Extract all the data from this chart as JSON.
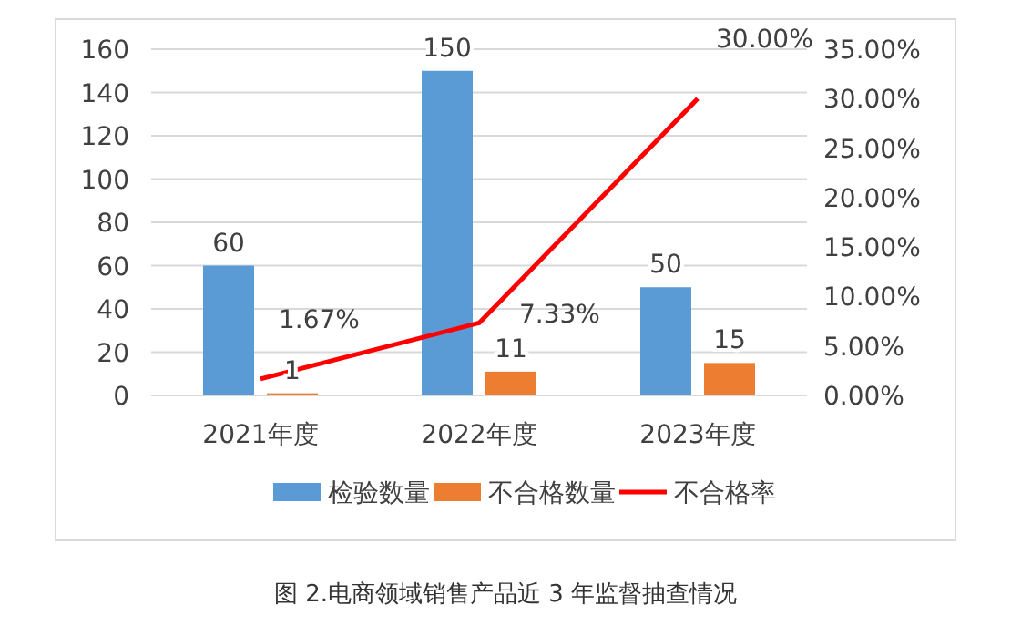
{
  "chart_data": {
    "type": "bar",
    "categories": [
      "2021年度",
      "2022年度",
      "2023年度"
    ],
    "series": [
      {
        "name": "检验数量",
        "color": "#5b9bd5",
        "values": [
          60,
          150,
          50
        ],
        "value_labels": [
          "60",
          "150",
          "50"
        ]
      },
      {
        "name": "不合格数量",
        "color": "#ed7d31",
        "values": [
          1,
          11,
          15
        ],
        "value_labels": [
          "1",
          "11",
          "15"
        ]
      },
      {
        "name": "不合格率",
        "type": "line",
        "axis": "y2",
        "color": "#ff0000",
        "values": [
          1.67,
          7.33,
          30.0
        ],
        "value_labels": [
          "1.67%",
          "7.33%",
          "30.00%"
        ]
      }
    ],
    "ylim": [
      0,
      160
    ],
    "yticks": [
      0,
      20,
      40,
      60,
      80,
      100,
      120,
      140,
      160
    ],
    "y2lim": [
      0,
      35
    ],
    "y2ticks": [
      {
        "value": 0,
        "label": "0.00%"
      },
      {
        "value": 5,
        "label": "5.00%"
      },
      {
        "value": 10,
        "label": "10.00%"
      },
      {
        "value": 15,
        "label": "15.00%"
      },
      {
        "value": 20,
        "label": "20.00%"
      },
      {
        "value": 25,
        "label": "25.00%"
      },
      {
        "value": 30,
        "label": "30.00%"
      },
      {
        "value": 35,
        "label": "35.00%"
      }
    ],
    "grid": "y",
    "legend": "bottom",
    "annotations": [
      "图 2.电商领域销售产品近 3 年监督抽查情况"
    ]
  }
}
